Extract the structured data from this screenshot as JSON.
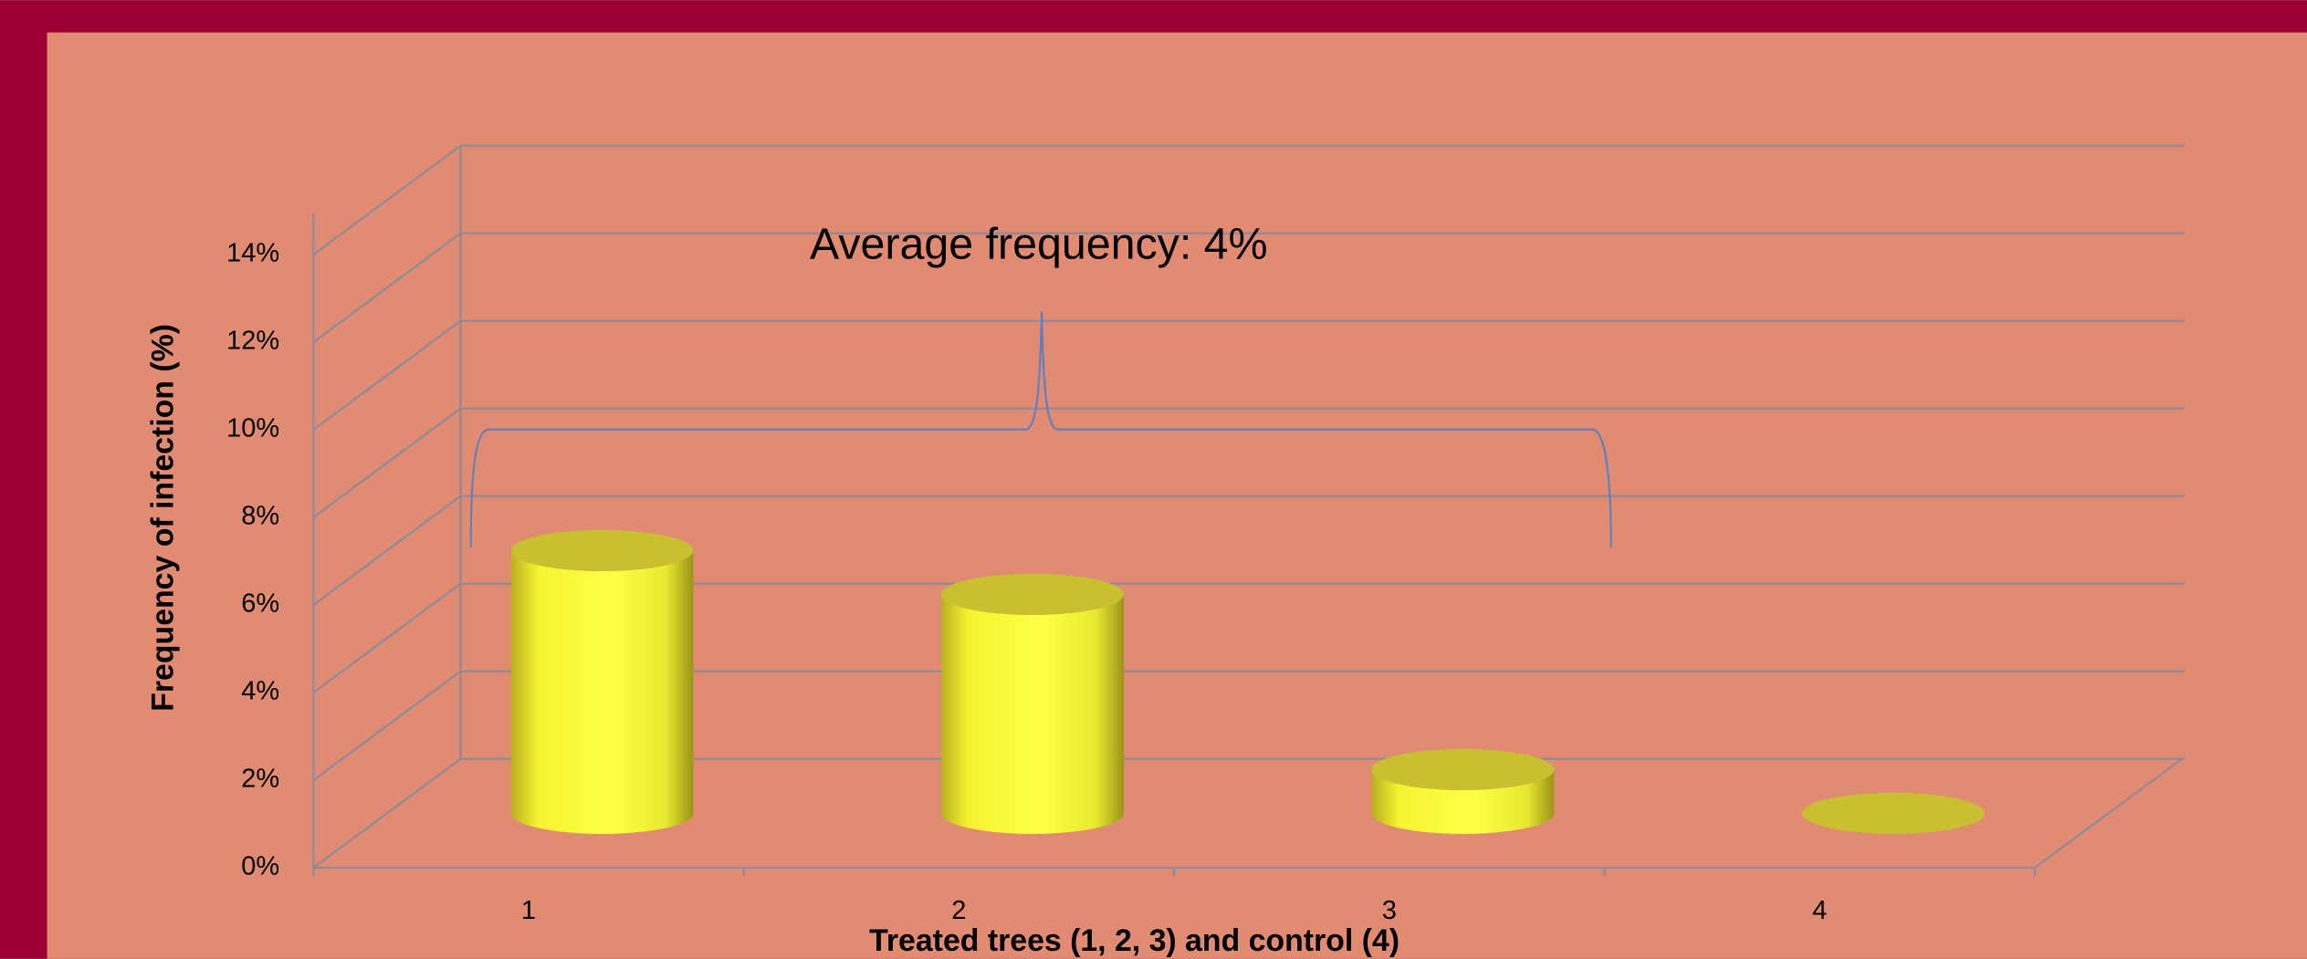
{
  "chart_data": {
    "type": "bar3d",
    "annotation": "Average frequency: 4%",
    "x_label": "Treated trees (1, 2, 3) and control (4)",
    "y_label": "Frequency of infection (%)",
    "categories": [
      "1",
      "2",
      "3",
      "4"
    ],
    "values": [
      6,
      5,
      1,
      0
    ],
    "color": "#ffff40",
    "ylim": [
      0,
      14
    ],
    "yticks": [
      {
        "value": 0,
        "label": "0%"
      },
      {
        "value": 2,
        "label": "2%"
      },
      {
        "value": 4,
        "label": "4%"
      },
      {
        "value": 6,
        "label": "6%"
      },
      {
        "value": 8,
        "label": "8%"
      },
      {
        "value": 10,
        "label": "10%"
      },
      {
        "value": 12,
        "label": "12%"
      },
      {
        "value": 14,
        "label": "14%"
      }
    ],
    "grid": true
  }
}
